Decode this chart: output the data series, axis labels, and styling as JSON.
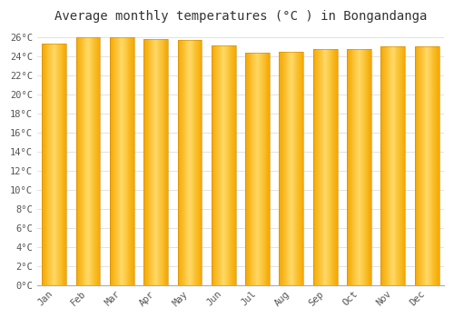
{
  "title": "Average monthly temperatures (°C ) in Bongandanga",
  "months": [
    "Jan",
    "Feb",
    "Mar",
    "Apr",
    "May",
    "Jun",
    "Jul",
    "Aug",
    "Sep",
    "Oct",
    "Nov",
    "Dec"
  ],
  "values": [
    25.3,
    26.0,
    26.0,
    25.8,
    25.7,
    25.1,
    24.4,
    24.5,
    24.8,
    24.8,
    25.0,
    25.0
  ],
  "bar_color_center": "#FFD966",
  "bar_color_edge": "#F5A800",
  "background_color": "#ffffff",
  "plot_bg_color": "#ffffff",
  "grid_color": "#dddddd",
  "ytick_labels": [
    "0°C",
    "2°C",
    "4°C",
    "6°C",
    "8°C",
    "10°C",
    "12°C",
    "14°C",
    "16°C",
    "18°C",
    "20°C",
    "22°C",
    "24°C",
    "26°C"
  ],
  "ytick_values": [
    0,
    2,
    4,
    6,
    8,
    10,
    12,
    14,
    16,
    18,
    20,
    22,
    24,
    26
  ],
  "ylim": [
    0,
    27
  ],
  "title_fontsize": 10,
  "tick_fontsize": 7.5,
  "font_family": "monospace"
}
